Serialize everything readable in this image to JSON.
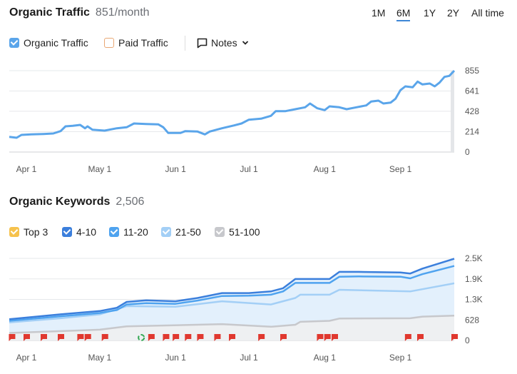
{
  "traffic": {
    "title": "Organic Traffic",
    "value": "851/month",
    "ranges": [
      "1M",
      "6M",
      "1Y",
      "2Y",
      "All time"
    ],
    "active_range": "6M",
    "legend": [
      {
        "label": "Organic Traffic",
        "checked": true,
        "color": "#5aa5ea"
      },
      {
        "label": "Paid Traffic",
        "checked": false,
        "color": "#e8a774"
      }
    ],
    "notes_label": "Notes",
    "icons": {
      "notes": "speech-bubble-icon",
      "dropdown": "chevron-down-icon"
    }
  },
  "keywords": {
    "title": "Organic Keywords",
    "value": "2,506",
    "legend": [
      {
        "label": "Top 3",
        "checked": true,
        "color": "#f6c24d"
      },
      {
        "label": "4-10",
        "checked": true,
        "color": "#3b7fdc"
      },
      {
        "label": "11-20",
        "checked": true,
        "color": "#4fa3ef"
      },
      {
        "label": "21-50",
        "checked": true,
        "color": "#a3cff6"
      },
      {
        "label": "51-100",
        "checked": true,
        "color": "#c7c8cc"
      }
    ]
  },
  "chart_data": [
    {
      "type": "line",
      "ylim": [
        0,
        855
      ],
      "xlim": [
        "2024-03-25",
        "2024-09-23"
      ],
      "yticks": [
        "855",
        "641",
        "428",
        "214",
        "0"
      ],
      "ytick_values": [
        855,
        641,
        428,
        214,
        0
      ],
      "xticks": [
        {
          "label": "Apr 1",
          "date": "2024-04-01"
        },
        {
          "label": "May 1",
          "date": "2024-05-01"
        },
        {
          "label": "Jun 1",
          "date": "2024-06-01"
        },
        {
          "label": "Jul 1",
          "date": "2024-07-01"
        },
        {
          "label": "Aug 1",
          "date": "2024-08-01"
        },
        {
          "label": "Sep 1",
          "date": "2024-09-01"
        }
      ],
      "grid": true,
      "series": [
        {
          "name": "Organic Traffic",
          "color": "#5aa5ea",
          "points": [
            [
              "2024-03-25",
              160
            ],
            [
              "2024-03-28",
              150
            ],
            [
              "2024-03-30",
              180
            ],
            [
              "2024-04-03",
              185
            ],
            [
              "2024-04-08",
              190
            ],
            [
              "2024-04-12",
              195
            ],
            [
              "2024-04-15",
              220
            ],
            [
              "2024-04-17",
              270
            ],
            [
              "2024-04-20",
              275
            ],
            [
              "2024-04-23",
              285
            ],
            [
              "2024-04-25",
              250
            ],
            [
              "2024-04-26",
              270
            ],
            [
              "2024-04-28",
              235
            ],
            [
              "2024-05-03",
              225
            ],
            [
              "2024-05-08",
              250
            ],
            [
              "2024-05-12",
              260
            ],
            [
              "2024-05-15",
              300
            ],
            [
              "2024-05-20",
              295
            ],
            [
              "2024-05-25",
              290
            ],
            [
              "2024-05-27",
              260
            ],
            [
              "2024-05-29",
              200
            ],
            [
              "2024-06-03",
              200
            ],
            [
              "2024-06-05",
              220
            ],
            [
              "2024-06-10",
              215
            ],
            [
              "2024-06-13",
              185
            ],
            [
              "2024-06-15",
              215
            ],
            [
              "2024-06-20",
              250
            ],
            [
              "2024-06-25",
              280
            ],
            [
              "2024-06-28",
              300
            ],
            [
              "2024-07-01",
              340
            ],
            [
              "2024-07-06",
              350
            ],
            [
              "2024-07-10",
              380
            ],
            [
              "2024-07-12",
              430
            ],
            [
              "2024-07-16",
              430
            ],
            [
              "2024-07-20",
              450
            ],
            [
              "2024-07-24",
              470
            ],
            [
              "2024-07-26",
              510
            ],
            [
              "2024-07-29",
              460
            ],
            [
              "2024-08-01",
              440
            ],
            [
              "2024-08-03",
              480
            ],
            [
              "2024-08-07",
              470
            ],
            [
              "2024-08-10",
              450
            ],
            [
              "2024-08-14",
              470
            ],
            [
              "2024-08-18",
              490
            ],
            [
              "2024-08-20",
              530
            ],
            [
              "2024-08-23",
              540
            ],
            [
              "2024-08-25",
              510
            ],
            [
              "2024-08-28",
              520
            ],
            [
              "2024-08-30",
              560
            ],
            [
              "2024-09-01",
              650
            ],
            [
              "2024-09-03",
              690
            ],
            [
              "2024-09-06",
              680
            ],
            [
              "2024-09-08",
              740
            ],
            [
              "2024-09-10",
              710
            ],
            [
              "2024-09-13",
              720
            ],
            [
              "2024-09-15",
              690
            ],
            [
              "2024-09-17",
              730
            ],
            [
              "2024-09-19",
              790
            ],
            [
              "2024-09-21",
              800
            ],
            [
              "2024-09-23",
              855
            ]
          ]
        }
      ]
    },
    {
      "type": "area",
      "ylim": [
        0,
        2512
      ],
      "xlim": [
        "2024-03-25",
        "2024-09-23"
      ],
      "yticks": [
        "2.5K",
        "1.9K",
        "1.3K",
        "628",
        "0"
      ],
      "ytick_values": [
        2512,
        1884,
        1256,
        628,
        0
      ],
      "xticks": [
        {
          "label": "Apr 1",
          "date": "2024-04-01"
        },
        {
          "label": "May 1",
          "date": "2024-05-01"
        },
        {
          "label": "Jun 1",
          "date": "2024-06-01"
        },
        {
          "label": "Jul 1",
          "date": "2024-07-01"
        },
        {
          "label": "Aug 1",
          "date": "2024-08-01"
        },
        {
          "label": "Sep 1",
          "date": "2024-09-01"
        }
      ],
      "grid": true,
      "series": [
        {
          "name": "4-10",
          "color": "#3b7fdc",
          "points": [
            [
              "2024-03-25",
              650
            ],
            [
              "2024-04-15",
              800
            ],
            [
              "2024-05-01",
              900
            ],
            [
              "2024-05-08",
              1000
            ],
            [
              "2024-05-12",
              1180
            ],
            [
              "2024-05-20",
              1230
            ],
            [
              "2024-06-01",
              1200
            ],
            [
              "2024-06-10",
              1300
            ],
            [
              "2024-06-20",
              1450
            ],
            [
              "2024-07-01",
              1450
            ],
            [
              "2024-07-10",
              1500
            ],
            [
              "2024-07-15",
              1600
            ],
            [
              "2024-07-20",
              1880
            ],
            [
              "2024-08-03",
              1880
            ],
            [
              "2024-08-07",
              2100
            ],
            [
              "2024-08-15",
              2100
            ],
            [
              "2024-09-01",
              2080
            ],
            [
              "2024-09-05",
              2050
            ],
            [
              "2024-09-10",
              2200
            ],
            [
              "2024-09-23",
              2500
            ]
          ]
        },
        {
          "name": "11-20",
          "color": "#4fa3ef",
          "points": [
            [
              "2024-03-25",
              600
            ],
            [
              "2024-04-15",
              740
            ],
            [
              "2024-05-01",
              840
            ],
            [
              "2024-05-08",
              930
            ],
            [
              "2024-05-12",
              1100
            ],
            [
              "2024-05-20",
              1140
            ],
            [
              "2024-06-01",
              1120
            ],
            [
              "2024-06-10",
              1220
            ],
            [
              "2024-06-20",
              1360
            ],
            [
              "2024-07-01",
              1370
            ],
            [
              "2024-07-10",
              1400
            ],
            [
              "2024-07-15",
              1500
            ],
            [
              "2024-07-20",
              1760
            ],
            [
              "2024-08-03",
              1760
            ],
            [
              "2024-08-07",
              1950
            ],
            [
              "2024-08-15",
              1960
            ],
            [
              "2024-09-01",
              1950
            ],
            [
              "2024-09-05",
              1900
            ],
            [
              "2024-09-10",
              2030
            ],
            [
              "2024-09-23",
              2280
            ]
          ]
        },
        {
          "name": "21-50",
          "color": "#a3cff6",
          "points": [
            [
              "2024-03-25",
              550
            ],
            [
              "2024-04-15",
              680
            ],
            [
              "2024-05-01",
              800
            ],
            [
              "2024-05-12",
              1050
            ],
            [
              "2024-06-01",
              1030
            ],
            [
              "2024-06-20",
              1200
            ],
            [
              "2024-07-10",
              1100
            ],
            [
              "2024-07-20",
              1300
            ],
            [
              "2024-07-22",
              1400
            ],
            [
              "2024-08-03",
              1400
            ],
            [
              "2024-08-07",
              1550
            ],
            [
              "2024-09-05",
              1500
            ],
            [
              "2024-09-23",
              1750
            ]
          ]
        },
        {
          "name": "51-100",
          "color": "#c7c8cc",
          "points": [
            [
              "2024-03-25",
              230
            ],
            [
              "2024-05-01",
              330
            ],
            [
              "2024-05-12",
              430
            ],
            [
              "2024-06-20",
              500
            ],
            [
              "2024-07-10",
              420
            ],
            [
              "2024-07-20",
              480
            ],
            [
              "2024-07-22",
              570
            ],
            [
              "2024-08-03",
              600
            ],
            [
              "2024-08-07",
              670
            ],
            [
              "2024-09-05",
              680
            ],
            [
              "2024-09-10",
              730
            ],
            [
              "2024-09-23",
              760
            ]
          ]
        }
      ],
      "notes_markers": [
        "2024-03-26",
        "2024-04-01",
        "2024-04-08",
        "2024-04-15",
        "2024-04-23",
        "2024-04-26",
        "2024-05-03",
        "2024-05-22",
        "2024-05-28",
        "2024-06-01",
        "2024-06-06",
        "2024-06-11",
        "2024-06-18",
        "2024-06-24",
        "2024-07-06",
        "2024-07-15",
        "2024-07-30",
        "2024-08-02",
        "2024-08-05",
        "2024-09-04",
        "2024-09-09",
        "2024-09-23"
      ],
      "google_update_markers": [
        "2024-05-18"
      ],
      "marker_color": "#e0382f"
    }
  ]
}
